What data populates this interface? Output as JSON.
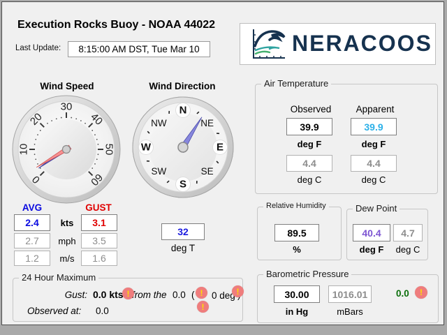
{
  "header": {
    "title": "Execution Rocks Buoy - NOAA 44022",
    "last_update_label": "Last Update:",
    "last_update_value": "8:15:00 AM DST,  Tue Mar 10",
    "logo_text": "NERACOOS",
    "logo_color": "#16324f"
  },
  "wind_speed": {
    "label": "Wind Speed",
    "gauge": {
      "min": 0,
      "max": 60,
      "major_ticks": [
        0,
        10,
        20,
        30,
        40,
        50,
        60
      ],
      "minor_step": 2,
      "avg_value": 2.4,
      "gust_value": 3.1,
      "avg_needle_color": "#6a6ad0",
      "gust_needle_color": "#f79090"
    },
    "table": {
      "avg_header": "AVG",
      "gust_header": "GUST",
      "avg_color": "#0a0ae0",
      "gust_color": "#e00000",
      "rows": [
        {
          "avg": "2.4",
          "unit": "kts",
          "gust": "3.1"
        },
        {
          "avg": "2.7",
          "unit": "mph",
          "gust": "3.5"
        },
        {
          "avg": "1.2",
          "unit": "m/s",
          "gust": "1.6"
        }
      ]
    }
  },
  "wind_direction": {
    "label": "Wind Direction",
    "compass": {
      "cardinals": [
        "N",
        "NE",
        "E",
        "SE",
        "S",
        "SW",
        "W",
        "NW"
      ],
      "value_deg": 32,
      "needle_color": "#8787dd"
    },
    "value": "32",
    "value_color": "#1a1adf",
    "unit": "deg T"
  },
  "air_temperature": {
    "title": "Air Temperature",
    "columns": [
      {
        "header": "Observed",
        "f": "39.9",
        "f_color": "#000000",
        "f_unit": "deg F",
        "c": "4.4",
        "c_unit": "deg C"
      },
      {
        "header": "Apparent",
        "f": "39.9",
        "f_color": "#2bb0e8",
        "f_unit": "deg F",
        "c": "4.4",
        "c_unit": "deg C"
      }
    ]
  },
  "relative_humidity": {
    "title": "Relative Humidity",
    "value": "89.5",
    "unit": "%"
  },
  "dew_point": {
    "title": "Dew Point",
    "f": "40.4",
    "f_color": "#7d55d2",
    "f_unit": "deg F",
    "c": "4.7",
    "c_unit": "deg C"
  },
  "max_24h": {
    "title": "24 Hour Maximum",
    "gust_label": "Gust:",
    "gust_value": "0.0 kts",
    "from_text": "from the",
    "from_value": "0.0",
    "paren_open": "(",
    "deg_value": "0 deg",
    "paren_close": ")",
    "observed_label": "Observed at:",
    "observed_value": "0.0",
    "warning_icon_glyph": "!"
  },
  "barometric_pressure": {
    "title": "Barometric Pressure",
    "inhg": "30.00",
    "inhg_unit": "in Hg",
    "mbars": "1016.01",
    "mbars_unit": "mBars",
    "trend": "0.0",
    "trend_color": "#0a6e0a",
    "warning_icon_glyph": "!"
  }
}
